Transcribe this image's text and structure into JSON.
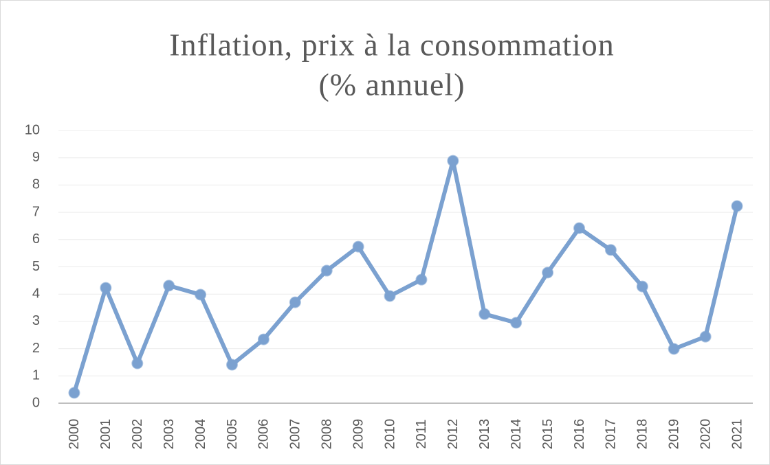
{
  "chart_data": {
    "type": "line",
    "title": [
      "Inflation, prix à la consommation",
      "(% annuel)"
    ],
    "categories": [
      "2000",
      "2001",
      "2002",
      "2003",
      "2004",
      "2005",
      "2006",
      "2007",
      "2008",
      "2009",
      "2010",
      "2011",
      "2012",
      "2013",
      "2014",
      "2015",
      "2016",
      "2017",
      "2018",
      "2019",
      "2020",
      "2021"
    ],
    "series": [
      {
        "name": "Inflation",
        "color": "#7ba1d0",
        "values": [
          0.38,
          4.23,
          1.46,
          4.31,
          3.98,
          1.41,
          2.34,
          3.7,
          4.86,
          5.74,
          3.93,
          4.53,
          8.89,
          3.27,
          2.95,
          4.79,
          6.42,
          5.62,
          4.28,
          1.99,
          2.44,
          7.23
        ]
      }
    ],
    "ylim": [
      0,
      10
    ],
    "yticks": [
      0,
      1,
      2,
      3,
      4,
      5,
      6,
      7,
      8,
      9,
      10
    ],
    "grid": true
  }
}
